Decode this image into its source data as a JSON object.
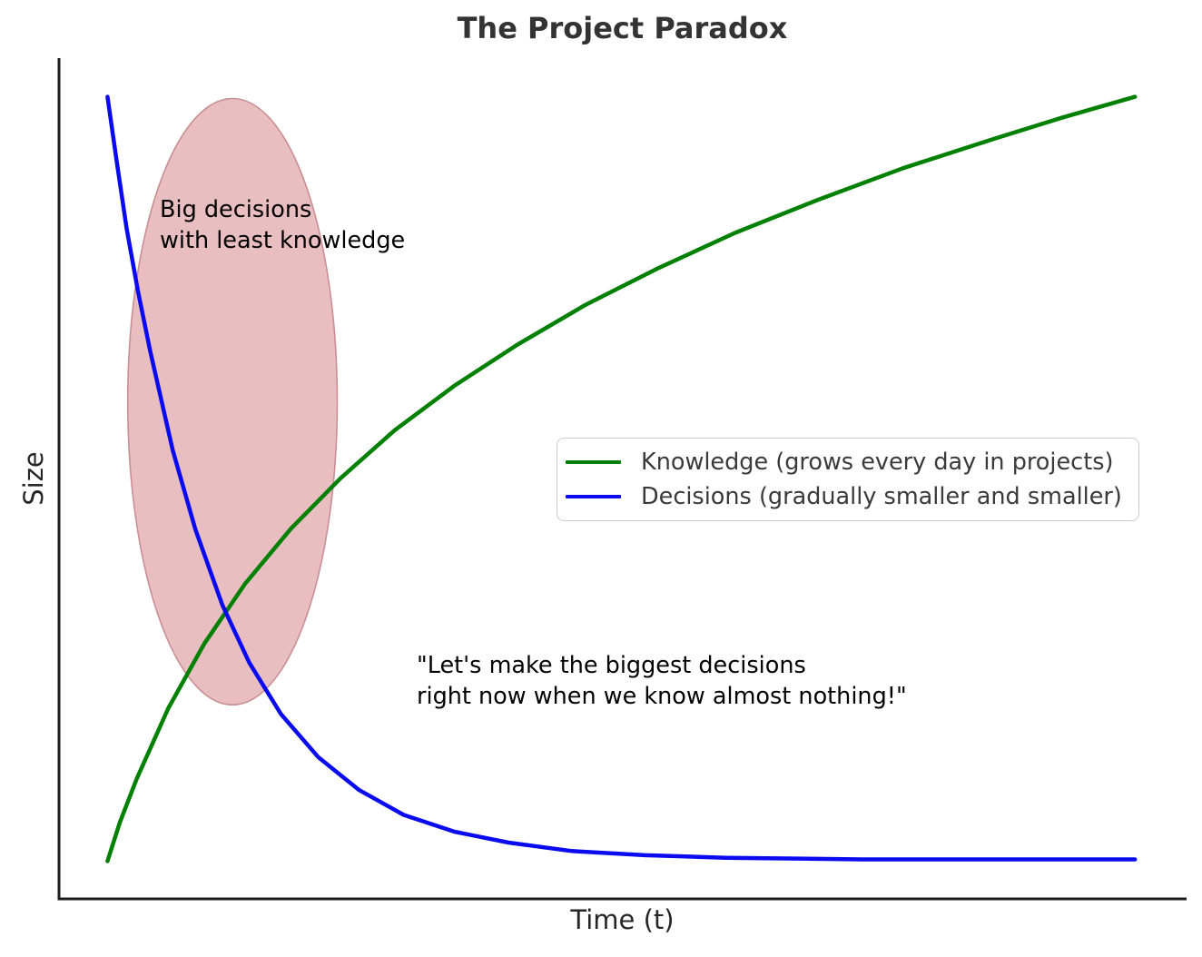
{
  "chart_data": {
    "type": "line",
    "title": "The Project Paradox",
    "xlabel": "Time (t)",
    "ylabel": "Size",
    "axes": {
      "tick_labels_visible": false,
      "grid": false,
      "spines_visible": [
        "left",
        "bottom"
      ],
      "spine_color": "#1c1c1c"
    },
    "legend_position": "center-right",
    "series": [
      {
        "name": "Knowledge (grows every day in projects)",
        "color": "#008000",
        "trend": "logarithmic growth from near zero to maximum",
        "points": [
          [
            0.043,
            0.045
          ],
          [
            0.054,
            0.091
          ],
          [
            0.069,
            0.143
          ],
          [
            0.097,
            0.227
          ],
          [
            0.129,
            0.304
          ],
          [
            0.165,
            0.375
          ],
          [
            0.206,
            0.441
          ],
          [
            0.25,
            0.501
          ],
          [
            0.298,
            0.558
          ],
          [
            0.351,
            0.611
          ],
          [
            0.407,
            0.66
          ],
          [
            0.467,
            0.707
          ],
          [
            0.532,
            0.751
          ],
          [
            0.6,
            0.793
          ],
          [
            0.673,
            0.832
          ],
          [
            0.749,
            0.87
          ],
          [
            0.83,
            0.905
          ],
          [
            0.89,
            0.93
          ],
          [
            0.955,
            0.955
          ]
        ]
      },
      {
        "name": "Decisions (gradually smaller and smaller)",
        "color": "#0a0af0",
        "trend": "exponential decay from maximum to near zero",
        "points": [
          [
            0.043,
            0.955
          ],
          [
            0.051,
            0.88
          ],
          [
            0.06,
            0.798
          ],
          [
            0.07,
            0.724
          ],
          [
            0.081,
            0.652
          ],
          [
            0.101,
            0.534
          ],
          [
            0.121,
            0.44
          ],
          [
            0.145,
            0.35
          ],
          [
            0.169,
            0.281
          ],
          [
            0.197,
            0.22
          ],
          [
            0.23,
            0.169
          ],
          [
            0.266,
            0.13
          ],
          [
            0.306,
            0.1
          ],
          [
            0.351,
            0.08
          ],
          [
            0.399,
            0.067
          ],
          [
            0.455,
            0.057
          ],
          [
            0.52,
            0.052
          ],
          [
            0.592,
            0.049
          ],
          [
            0.713,
            0.047
          ],
          [
            0.834,
            0.047
          ],
          [
            0.955,
            0.047
          ]
        ]
      }
    ],
    "annotations": [
      {
        "id": "big-decisions",
        "text": "Big decisions\nwith least knowledge"
      },
      {
        "id": "quote",
        "text": "\"Let's make the biggest decisions\nright now when we know almost nothing!\""
      }
    ],
    "highlight_ellipse": {
      "cx": 0.154,
      "cy": 0.592,
      "rx": 0.093,
      "ry": 0.361,
      "fill": "#e8bec1",
      "stroke": "#c98f93",
      "meaning": "region where big decisions are made with least knowledge"
    }
  }
}
